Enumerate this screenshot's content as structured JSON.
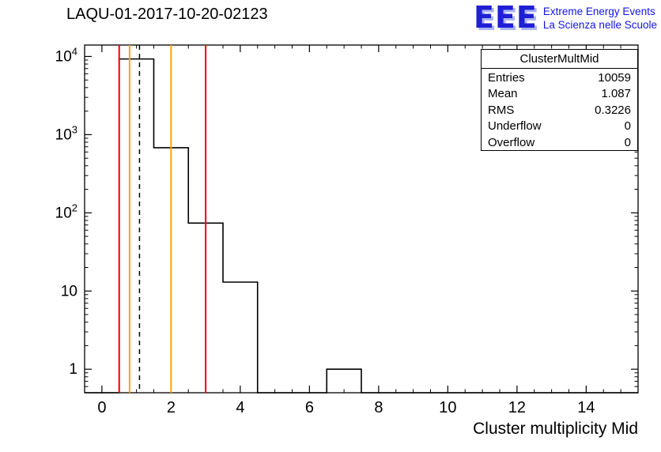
{
  "header": {
    "title": "LAQU-01-2017-10-20-02123",
    "logo": {
      "text": "EEE",
      "line1": "Extreme Energy Events",
      "line2": "La Scienza nelle Scuole",
      "color": "#1515e6"
    }
  },
  "stats_box": {
    "title": "ClusterMultMid",
    "rows": [
      {
        "label": "Entries",
        "value": "10059"
      },
      {
        "label": "Mean",
        "value": "1.087"
      },
      {
        "label": "RMS",
        "value": "0.3226"
      },
      {
        "label": "Underflow",
        "value": "0"
      },
      {
        "label": "Overflow",
        "value": "0"
      }
    ]
  },
  "chart_data": {
    "type": "bar",
    "subtype": "step-histogram",
    "title": "LAQU-01-2017-10-20-02123",
    "xlabel": "Cluster multiplicity Mid",
    "ylabel": "",
    "y_scale": "log",
    "x_range": [
      -0.5,
      15.5
    ],
    "y_range": [
      0.5,
      14000
    ],
    "x_ticks_major": [
      0,
      2,
      4,
      6,
      8,
      10,
      12,
      14
    ],
    "x_minor_step": 0.5,
    "y_ticks_major": [
      1,
      10,
      100,
      1000,
      10000
    ],
    "y_tick_labels": [
      "1",
      "10",
      "10^2",
      "10^3",
      "10^4"
    ],
    "bins": {
      "edges": [
        0.5,
        1.5,
        2.5,
        3.5,
        4.5,
        5.5,
        6.5,
        7.5
      ],
      "counts": [
        9290,
        680,
        74,
        13,
        0,
        0,
        1
      ]
    },
    "line_color": "#000000",
    "markers": [
      {
        "x": 0.5,
        "color": "#ff0000",
        "style": "solid"
      },
      {
        "x": 0.8,
        "color": "#ffa500",
        "style": "solid"
      },
      {
        "x": 1.087,
        "color": "#000000",
        "style": "dashed"
      },
      {
        "x": 2.0,
        "color": "#ffa500",
        "style": "solid"
      },
      {
        "x": 3.0,
        "color": "#ff0000",
        "style": "solid"
      }
    ],
    "grid": false,
    "legend": null
  }
}
